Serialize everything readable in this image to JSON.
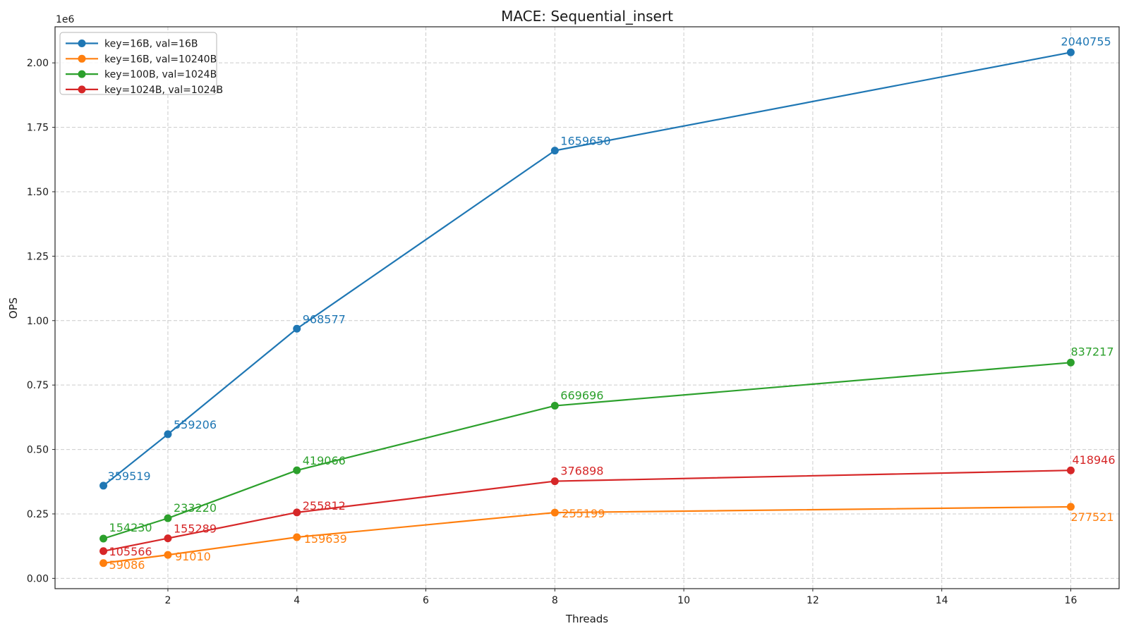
{
  "chart_data": {
    "type": "line",
    "title": "MACE: Sequential_insert",
    "xlabel": "Threads",
    "ylabel": "OPS",
    "y_offset_text": "1e6",
    "x": [
      1,
      2,
      4,
      8,
      16
    ],
    "series": [
      {
        "name": "key=16B, val=16B",
        "color": "#1f77b4",
        "values": [
          359519,
          559206,
          968577,
          1659650,
          2040755
        ],
        "label_offsets": [
          [
            6,
            -8
          ],
          [
            8,
            -8
          ],
          [
            8,
            -8
          ],
          [
            8,
            -8
          ],
          [
            -14,
            -10
          ]
        ]
      },
      {
        "name": "key=16B, val=10240B",
        "color": "#ff7f0e",
        "values": [
          59086,
          91010,
          159639,
          255199,
          277521
        ],
        "label_offsets": [
          [
            8,
            8
          ],
          [
            10,
            8
          ],
          [
            10,
            8
          ],
          [
            10,
            7
          ],
          [
            0,
            20
          ]
        ]
      },
      {
        "name": "key=100B, val=1024B",
        "color": "#2ca02c",
        "values": [
          154230,
          233220,
          419066,
          669696,
          837217
        ],
        "label_offsets": [
          [
            8,
            -10
          ],
          [
            8,
            -9
          ],
          [
            8,
            -8
          ],
          [
            8,
            -9
          ],
          [
            0,
            -10
          ]
        ]
      },
      {
        "name": "key=1024B, val=1024B",
        "color": "#d62728",
        "values": [
          105566,
          155289,
          255812,
          376898,
          418946
        ],
        "label_offsets": [
          [
            8,
            6
          ],
          [
            8,
            -8
          ],
          [
            8,
            -4
          ],
          [
            8,
            -9
          ],
          [
            2,
            -9
          ]
        ]
      }
    ],
    "xlim": [
      0.25,
      16.75
    ],
    "ylim": [
      -40000,
      2140000
    ],
    "xticks": {
      "values": [
        2,
        4,
        6,
        8,
        10,
        12,
        14,
        16
      ],
      "labels": [
        "2",
        "4",
        "6",
        "8",
        "10",
        "12",
        "14",
        "16"
      ]
    },
    "yticks": {
      "values": [
        0,
        250000,
        500000,
        750000,
        1000000,
        1250000,
        1500000,
        1750000,
        2000000
      ],
      "labels": [
        "0.00",
        "0.25",
        "0.50",
        "0.75",
        "1.00",
        "1.25",
        "1.50",
        "1.75",
        "2.00"
      ]
    },
    "grid": true,
    "legend": {
      "position": "upper left",
      "entries": [
        "key=16B, val=16B",
        "key=16B, val=10240B",
        "key=100B, val=1024B",
        "key=1024B, val=1024B"
      ]
    },
    "colors": {
      "grid": "#cccccc",
      "spine": "#262626",
      "tick": "#262626"
    }
  }
}
